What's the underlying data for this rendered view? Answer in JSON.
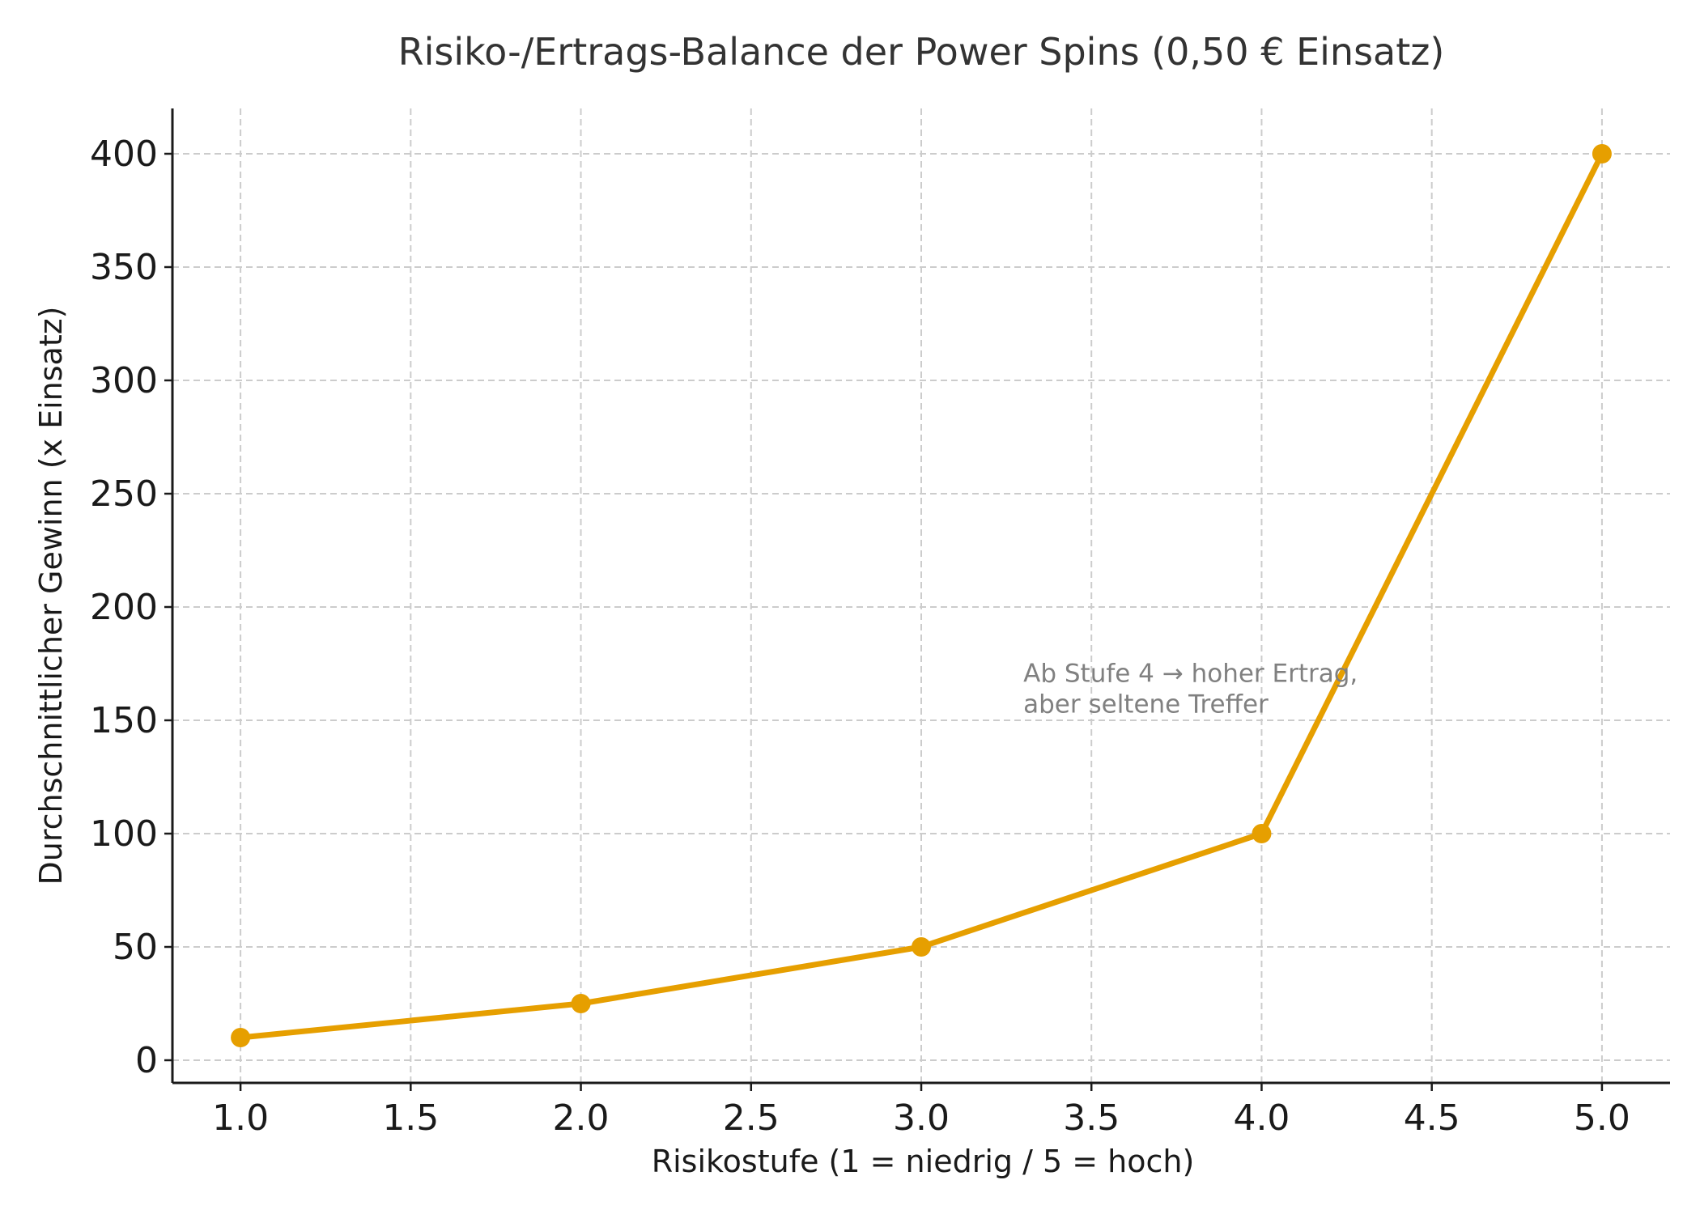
{
  "chart_data": {
    "type": "line",
    "title": "Risiko-/Ertrags-Balance der Power Spins (0,50 € Einsatz)",
    "xlabel": "Risikostufe (1 = niedrig / 5 = hoch)",
    "ylabel": "Durchschnittlicher Gewinn (x Einsatz)",
    "x": [
      1,
      2,
      3,
      4,
      5
    ],
    "series": [
      {
        "values": [
          10,
          25,
          50,
          100,
          400
        ],
        "color": "#E69F00"
      }
    ],
    "xlim": [
      0.8,
      5.2
    ],
    "ylim": [
      -10,
      420
    ],
    "xticks": [
      1.0,
      1.5,
      2.0,
      2.5,
      3.0,
      3.5,
      4.0,
      4.5,
      5.0
    ],
    "xtick_labels": [
      "1.0",
      "1.5",
      "2.0",
      "2.5",
      "3.0",
      "3.5",
      "4.0",
      "4.5",
      "5.0"
    ],
    "yticks": [
      0,
      50,
      100,
      150,
      200,
      250,
      300,
      350,
      400
    ],
    "ytick_labels": [
      "0",
      "50",
      "100",
      "150",
      "200",
      "250",
      "300",
      "350",
      "400"
    ],
    "grid": true,
    "annotation": {
      "lines": [
        "Ab Stufe 4 → hoher Ertrag,",
        "aber seltene Treffer"
      ],
      "x": 3.3,
      "y": 167
    }
  }
}
